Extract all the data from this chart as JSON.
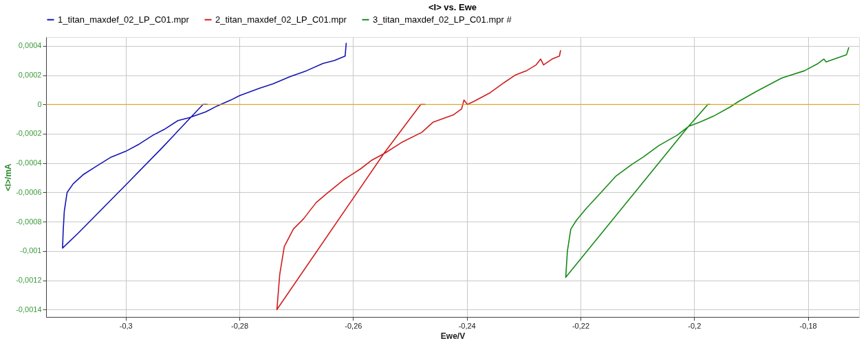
{
  "chart_data": {
    "type": "line",
    "title": "<I> vs. Ewe",
    "xlabel": "Ewe/V",
    "ylabel": "<I>/mA",
    "xlim": [
      -0.314,
      -0.171
    ],
    "ylim": [
      -0.00145,
      0.00046
    ],
    "xticks": [
      {
        "value": -0.3,
        "label": "-0,3"
      },
      {
        "value": -0.28,
        "label": "-0,28"
      },
      {
        "value": -0.26,
        "label": "-0,26"
      },
      {
        "value": -0.24,
        "label": "-0,24"
      },
      {
        "value": -0.22,
        "label": "-0,22"
      },
      {
        "value": -0.2,
        "label": "-0,2"
      },
      {
        "value": -0.18,
        "label": "-0,18"
      }
    ],
    "yticks": [
      {
        "value": 0.0004,
        "label": "0,0004"
      },
      {
        "value": 0.0002,
        "label": "0,0002"
      },
      0,
      {
        "value": -0.0002,
        "label": "-0,0002"
      },
      {
        "value": -0.0004,
        "label": "-0,0004"
      },
      {
        "value": -0.0006,
        "label": "-0,0006"
      },
      {
        "value": -0.0008,
        "label": "-0,0008"
      },
      {
        "value": -0.001,
        "label": "-0,001"
      },
      {
        "value": -0.0012,
        "label": "-0,0012"
      },
      {
        "value": -0.0014,
        "label": "-0,0014"
      }
    ],
    "grid": true,
    "legend": "top",
    "line_style": "solid",
    "marker": "none",
    "ref_lines": [
      {
        "axis": "y",
        "value": 0,
        "color": "#e0a000"
      }
    ],
    "series": [
      {
        "name": "1_titan_maxdef_02_LP_C01.mpr",
        "color": "#1414b4",
        "x": [
          -0.2856,
          -0.2864,
          -0.2937,
          -0.3,
          -0.3084,
          -0.3111,
          -0.311,
          -0.3108,
          -0.3103,
          -0.3092,
          -0.3075,
          -0.3055,
          -0.3026,
          -0.3,
          -0.2976,
          -0.2952,
          -0.2932,
          -0.2908,
          -0.2888,
          -0.2859,
          -0.2839,
          -0.2815,
          -0.28,
          -0.2765,
          -0.2741,
          -0.2711,
          -0.2682,
          -0.2653,
          -0.2633,
          -0.2614,
          -0.2612
        ],
        "values": [
          0,
          0,
          -0.0003,
          -0.00055,
          -0.00088,
          -0.00098,
          -0.00087,
          -0.00073,
          -0.0006,
          -0.00054,
          -0.00048,
          -0.00043,
          -0.00036,
          -0.00032,
          -0.00027,
          -0.00021,
          -0.00017,
          -0.00011,
          -9e-05,
          -5e-05,
          -1e-05,
          3e-05,
          6e-05,
          0.00011,
          0.00014,
          0.00019,
          0.00023,
          0.00028,
          0.0003,
          0.00033,
          0.00042
        ]
      },
      {
        "name": "2_titan_maxdef_02_LP_C01.mpr",
        "color": "#d01c1c",
        "x": [
          -0.2473,
          -0.2481,
          -0.2545,
          -0.2734,
          -0.2729,
          -0.2721,
          -0.2705,
          -0.2687,
          -0.2665,
          -0.2647,
          -0.2631,
          -0.2615,
          -0.2587,
          -0.2567,
          -0.2543,
          -0.2515,
          -0.2479,
          -0.2459,
          -0.2423,
          -0.2409,
          -0.2405,
          -0.2399,
          -0.2388,
          -0.2359,
          -0.2334,
          -0.2315,
          -0.2295,
          -0.2278,
          -0.227,
          -0.2265,
          -0.225,
          -0.2237,
          -0.2235
        ],
        "values": [
          0,
          0,
          -0.00033,
          -0.0014,
          -0.00116,
          -0.00097,
          -0.00085,
          -0.00078,
          -0.00067,
          -0.00061,
          -0.00056,
          -0.00051,
          -0.00044,
          -0.00038,
          -0.00033,
          -0.00026,
          -0.00019,
          -0.00012,
          -7e-05,
          -3e-05,
          3e-05,
          0,
          2e-05,
          8e-05,
          0.00015,
          0.0002,
          0.00023,
          0.00027,
          0.00031,
          0.00027,
          0.00031,
          0.00033,
          0.00037
        ]
      },
      {
        "name": "3_titan_maxdef_02_LP_C01.mpr #",
        "color": "#168a16",
        "x": [
          -0.1972,
          -0.1976,
          -0.201,
          -0.2226,
          -0.2223,
          -0.2217,
          -0.2207,
          -0.219,
          -0.2166,
          -0.2138,
          -0.211,
          -0.209,
          -0.2062,
          -0.203,
          -0.201,
          -0.199,
          -0.1966,
          -0.1938,
          -0.1922,
          -0.189,
          -0.1846,
          -0.1806,
          -0.1782,
          -0.1772,
          -0.1768,
          -0.1732,
          -0.1728
        ],
        "values": [
          0,
          0,
          -0.00015,
          -0.00118,
          -0.001,
          -0.00085,
          -0.00079,
          -0.00071,
          -0.00061,
          -0.00049,
          -0.00041,
          -0.00036,
          -0.00028,
          -0.00021,
          -0.00015,
          -0.00012,
          -8e-05,
          -2e-05,
          2e-05,
          9e-05,
          0.00018,
          0.00023,
          0.00028,
          0.00031,
          0.00029,
          0.00034,
          0.00039
        ]
      }
    ]
  }
}
